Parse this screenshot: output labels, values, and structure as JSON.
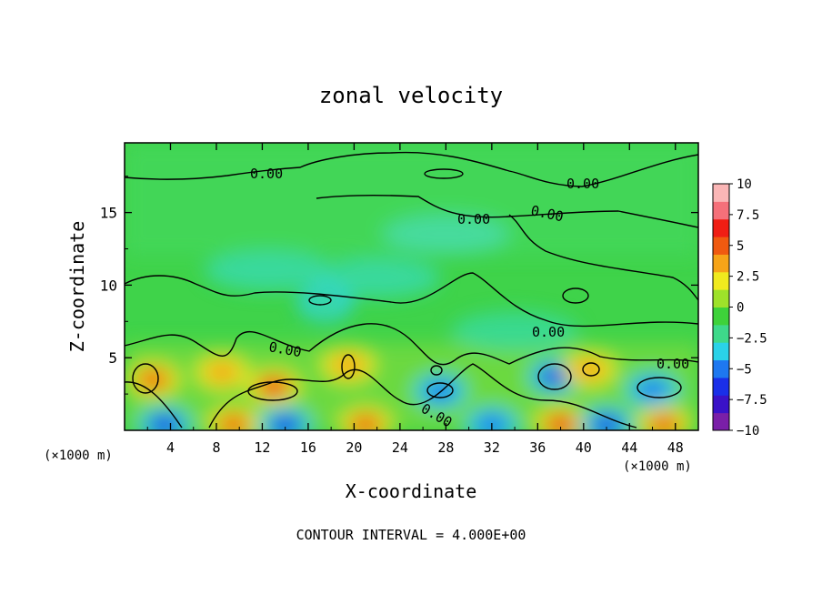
{
  "chart_data": {
    "type": "heatmap",
    "title": "zonal velocity",
    "xlabel": "X-coordinate",
    "ylabel": "Z-coordinate",
    "x_unit_left": "(×1000 m)",
    "x_unit_right": "(×1000 m)",
    "footer": "CONTOUR INTERVAL = 4.000E+00",
    "xlim": [
      0,
      50
    ],
    "ylim": [
      0,
      19.8
    ],
    "x_ticks": [
      4,
      8,
      12,
      16,
      20,
      24,
      28,
      32,
      36,
      40,
      44,
      48
    ],
    "y_ticks": [
      5,
      10,
      15
    ],
    "grid": false,
    "colorbar": {
      "position": "right",
      "min": -10,
      "max": 10,
      "ticks": [
        "10",
        "7.5",
        "5",
        "2.5",
        "0",
        "−2.5",
        "−5",
        "−7.5",
        "−10"
      ],
      "colors": [
        "#7a1fa8",
        "#3a12c8",
        "#1a2fe8",
        "#1e78f0",
        "#2ad2e8",
        "#3ed98a",
        "#3ed23a",
        "#9ee22a",
        "#f0ea1e",
        "#f6a418",
        "#f05a10",
        "#f01e14",
        "#f5707a",
        "#fab6b6"
      ]
    },
    "contour_labels": [
      "0.00",
      "0.00",
      "0.00",
      "0.00",
      "0.00",
      "0.00",
      "0.00",
      "0.00"
    ],
    "features": [
      {
        "x": 2.5,
        "z": 3.5,
        "u": 4.5
      },
      {
        "x": 3.5,
        "z": 0.4,
        "u": -6.5
      },
      {
        "x": 8.5,
        "z": 4.0,
        "u": 4.0
      },
      {
        "x": 9.5,
        "z": 0.4,
        "u": 5.0
      },
      {
        "x": 13.0,
        "z": 3.0,
        "u": 6.0
      },
      {
        "x": 14.0,
        "z": 0.4,
        "u": -7.0
      },
      {
        "x": 17.5,
        "z": 8.8,
        "u": -2.5
      },
      {
        "x": 19.5,
        "z": 4.5,
        "u": 4.0
      },
      {
        "x": 21.0,
        "z": 0.4,
        "u": 5.0
      },
      {
        "x": 27.5,
        "z": 2.7,
        "u": -5.0
      },
      {
        "x": 32.0,
        "z": 0.4,
        "u": -5.5
      },
      {
        "x": 37.5,
        "z": 3.7,
        "u": -6.0
      },
      {
        "x": 38.0,
        "z": 0.4,
        "u": 6.0
      },
      {
        "x": 40.5,
        "z": 4.2,
        "u": 4.0
      },
      {
        "x": 42.0,
        "z": 0.4,
        "u": -6.0
      },
      {
        "x": 46.0,
        "z": 2.8,
        "u": -5.5
      },
      {
        "x": 47.0,
        "z": 0.4,
        "u": 5.0
      }
    ]
  }
}
